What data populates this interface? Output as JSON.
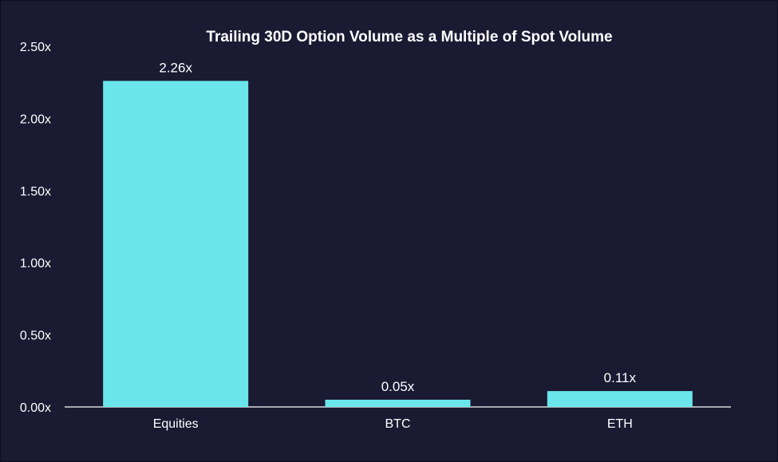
{
  "chart_data": {
    "type": "bar",
    "title": "Trailing 30D Option Volume as a Multiple of Spot Volume",
    "categories": [
      "Equities",
      "BTC",
      "ETH"
    ],
    "values": [
      2.26,
      0.05,
      0.11
    ],
    "data_labels": [
      "2.26x",
      "0.05x",
      "0.11x"
    ],
    "y_ticks": [
      0,
      0.5,
      1.0,
      1.5,
      2.0,
      2.5
    ],
    "y_tick_labels": [
      "0.00x",
      "0.50x",
      "1.00x",
      "1.50x",
      "2.00x",
      "2.50x"
    ],
    "ylim": [
      0,
      2.5
    ],
    "grid": false,
    "legend": "none",
    "colors": {
      "background": "#1b1a33",
      "bar": "#6ae6ea",
      "text": "#ffffff",
      "axis": "#ffffff"
    }
  }
}
